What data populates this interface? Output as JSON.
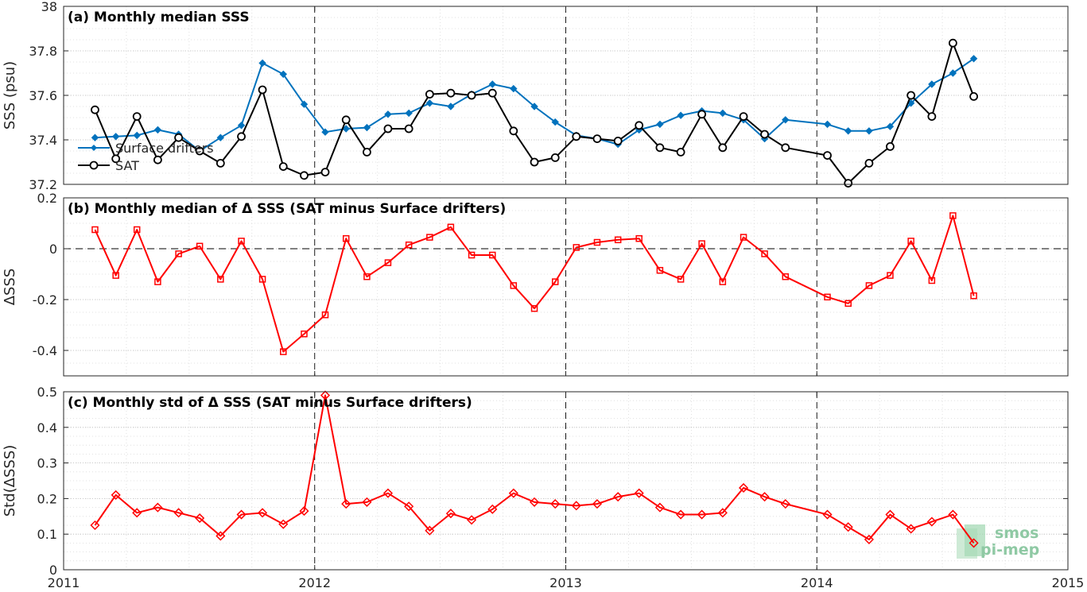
{
  "chart_data": [
    {
      "type": "line",
      "title": "(a) Monthly median SSS",
      "ylabel": "SSS (psu)",
      "xlim": [
        2011,
        2015
      ],
      "ylim": [
        37.2,
        38
      ],
      "yticks": [
        37.2,
        37.4,
        37.6,
        37.8,
        38
      ],
      "ytick_labels": [
        "37.2",
        "37.4",
        "37.6",
        "37.8",
        "38"
      ],
      "grid": true,
      "legend": "left",
      "series": [
        {
          "name": "Surface drifters",
          "color": "#0072BD",
          "marker": "diamond-filled",
          "points": [
            [
              2011.125,
              37.41
            ],
            [
              2011.208,
              37.415
            ],
            [
              2011.292,
              37.42
            ],
            [
              2011.375,
              37.445
            ],
            [
              2011.458,
              37.425
            ],
            [
              2011.542,
              37.35
            ],
            [
              2011.625,
              37.41
            ],
            [
              2011.708,
              37.465
            ],
            [
              2011.792,
              37.745
            ],
            [
              2011.875,
              37.695
            ],
            [
              2011.958,
              37.56
            ],
            [
              2012.042,
              37.435
            ],
            [
              2012.125,
              37.45
            ],
            [
              2012.208,
              37.455
            ],
            [
              2012.292,
              37.515
            ],
            [
              2012.375,
              37.52
            ],
            [
              2012.458,
              37.565
            ],
            [
              2012.542,
              37.55
            ],
            [
              2012.625,
              37.605
            ],
            [
              2012.708,
              37.65
            ],
            [
              2012.792,
              37.63
            ],
            [
              2012.875,
              37.55
            ],
            [
              2012.958,
              37.48
            ],
            [
              2013.042,
              37.42
            ],
            [
              2013.125,
              37.405
            ],
            [
              2013.208,
              37.38
            ],
            [
              2013.292,
              37.445
            ],
            [
              2013.375,
              37.47
            ],
            [
              2013.458,
              37.51
            ],
            [
              2013.542,
              37.53
            ],
            [
              2013.625,
              37.52
            ],
            [
              2013.708,
              37.49
            ],
            [
              2013.792,
              37.405
            ],
            [
              2013.875,
              37.49
            ],
            [
              2014.042,
              37.47
            ],
            [
              2014.125,
              37.44
            ],
            [
              2014.208,
              37.44
            ],
            [
              2014.292,
              37.46
            ],
            [
              2014.375,
              37.565
            ],
            [
              2014.458,
              37.65
            ],
            [
              2014.542,
              37.7
            ],
            [
              2014.625,
              37.765
            ]
          ]
        },
        {
          "name": "SAT",
          "color": "#000000",
          "marker": "circle-open",
          "points": [
            [
              2011.125,
              37.535
            ],
            [
              2011.208,
              37.315
            ],
            [
              2011.292,
              37.505
            ],
            [
              2011.375,
              37.31
            ],
            [
              2011.458,
              37.41
            ],
            [
              2011.542,
              37.35
            ],
            [
              2011.625,
              37.295
            ],
            [
              2011.708,
              37.415
            ],
            [
              2011.792,
              37.625
            ],
            [
              2011.875,
              37.28
            ],
            [
              2011.958,
              37.24
            ],
            [
              2012.042,
              37.255
            ],
            [
              2012.125,
              37.49
            ],
            [
              2012.208,
              37.345
            ],
            [
              2012.292,
              37.45
            ],
            [
              2012.375,
              37.45
            ],
            [
              2012.458,
              37.605
            ],
            [
              2012.542,
              37.61
            ],
            [
              2012.625,
              37.6
            ],
            [
              2012.708,
              37.61
            ],
            [
              2012.792,
              37.44
            ],
            [
              2012.875,
              37.3
            ],
            [
              2012.958,
              37.32
            ],
            [
              2013.042,
              37.415
            ],
            [
              2013.125,
              37.405
            ],
            [
              2013.208,
              37.395
            ],
            [
              2013.292,
              37.465
            ],
            [
              2013.375,
              37.365
            ],
            [
              2013.458,
              37.345
            ],
            [
              2013.542,
              37.515
            ],
            [
              2013.625,
              37.365
            ],
            [
              2013.708,
              37.505
            ],
            [
              2013.792,
              37.425
            ],
            [
              2013.875,
              37.365
            ],
            [
              2014.042,
              37.33
            ],
            [
              2014.125,
              37.205
            ],
            [
              2014.208,
              37.295
            ],
            [
              2014.292,
              37.37
            ],
            [
              2014.375,
              37.6
            ],
            [
              2014.458,
              37.505
            ],
            [
              2014.542,
              37.835
            ],
            [
              2014.625,
              37.595
            ]
          ]
        }
      ]
    },
    {
      "type": "line",
      "title": "(b) Monthly median of Δ SSS (SAT minus Surface drifters)",
      "ylabel": "ΔSSS",
      "xlim": [
        2011,
        2015
      ],
      "ylim": [
        -0.5,
        0.2
      ],
      "yticks": [
        -0.4,
        -0.2,
        0,
        0.2
      ],
      "ytick_labels": [
        "-0.4",
        "-0.2",
        "0",
        "0.2"
      ],
      "zero_line": true,
      "grid": true,
      "series": [
        {
          "color": "#ff0000",
          "marker": "square-open",
          "points": [
            [
              2011.125,
              0.075
            ],
            [
              2011.208,
              -0.105
            ],
            [
              2011.292,
              0.075
            ],
            [
              2011.375,
              -0.13
            ],
            [
              2011.458,
              -0.02
            ],
            [
              2011.542,
              0.01
            ],
            [
              2011.625,
              -0.12
            ],
            [
              2011.708,
              0.03
            ],
            [
              2011.792,
              -0.12
            ],
            [
              2011.875,
              -0.405
            ],
            [
              2011.958,
              -0.335
            ],
            [
              2012.042,
              -0.26
            ],
            [
              2012.125,
              0.04
            ],
            [
              2012.208,
              -0.11
            ],
            [
              2012.292,
              -0.055
            ],
            [
              2012.375,
              0.015
            ],
            [
              2012.458,
              0.045
            ],
            [
              2012.542,
              0.085
            ],
            [
              2012.625,
              -0.025
            ],
            [
              2012.708,
              -0.025
            ],
            [
              2012.792,
              -0.145
            ],
            [
              2012.875,
              -0.235
            ],
            [
              2012.958,
              -0.13
            ],
            [
              2013.042,
              0.005
            ],
            [
              2013.125,
              0.025
            ],
            [
              2013.208,
              0.035
            ],
            [
              2013.292,
              0.04
            ],
            [
              2013.375,
              -0.085
            ],
            [
              2013.458,
              -0.12
            ],
            [
              2013.542,
              0.02
            ],
            [
              2013.625,
              -0.13
            ],
            [
              2013.708,
              0.045
            ],
            [
              2013.792,
              -0.02
            ],
            [
              2013.875,
              -0.11
            ],
            [
              2014.042,
              -0.19
            ],
            [
              2014.125,
              -0.215
            ],
            [
              2014.208,
              -0.145
            ],
            [
              2014.292,
              -0.105
            ],
            [
              2014.375,
              0.03
            ],
            [
              2014.458,
              -0.125
            ],
            [
              2014.542,
              0.13
            ],
            [
              2014.625,
              -0.185
            ]
          ]
        }
      ]
    },
    {
      "type": "line",
      "title": "(c) Monthly std of Δ SSS (SAT minus Surface drifters)",
      "ylabel": "Std(ΔSSS)",
      "xlim": [
        2011,
        2015
      ],
      "ylim": [
        0,
        0.5
      ],
      "yticks": [
        0,
        0.1,
        0.2,
        0.3,
        0.4,
        0.5
      ],
      "ytick_labels": [
        "0",
        "0.1",
        "0.2",
        "0.3",
        "0.4",
        "0.5"
      ],
      "xticks": [
        2011,
        2012,
        2013,
        2014,
        2015
      ],
      "xtick_labels": [
        "2011",
        "2012",
        "2013",
        "2014",
        "2015"
      ],
      "grid": true,
      "series": [
        {
          "color": "#ff0000",
          "marker": "diamond-open",
          "points": [
            [
              2011.125,
              0.125
            ],
            [
              2011.208,
              0.21
            ],
            [
              2011.292,
              0.16
            ],
            [
              2011.375,
              0.175
            ],
            [
              2011.458,
              0.16
            ],
            [
              2011.542,
              0.145
            ],
            [
              2011.625,
              0.095
            ],
            [
              2011.708,
              0.155
            ],
            [
              2011.792,
              0.16
            ],
            [
              2011.875,
              0.128
            ],
            [
              2011.958,
              0.165
            ],
            [
              2012.042,
              0.49
            ],
            [
              2012.125,
              0.185
            ],
            [
              2012.208,
              0.19
            ],
            [
              2012.292,
              0.215
            ],
            [
              2012.375,
              0.178
            ],
            [
              2012.458,
              0.11
            ],
            [
              2012.542,
              0.158
            ],
            [
              2012.625,
              0.14
            ],
            [
              2012.708,
              0.17
            ],
            [
              2012.792,
              0.215
            ],
            [
              2012.875,
              0.19
            ],
            [
              2012.958,
              0.185
            ],
            [
              2013.042,
              0.18
            ],
            [
              2013.125,
              0.185
            ],
            [
              2013.208,
              0.205
            ],
            [
              2013.292,
              0.215
            ],
            [
              2013.375,
              0.175
            ],
            [
              2013.458,
              0.155
            ],
            [
              2013.542,
              0.155
            ],
            [
              2013.625,
              0.16
            ],
            [
              2013.708,
              0.23
            ],
            [
              2013.792,
              0.205
            ],
            [
              2013.875,
              0.185
            ],
            [
              2014.042,
              0.155
            ],
            [
              2014.125,
              0.12
            ],
            [
              2014.208,
              0.085
            ],
            [
              2014.292,
              0.155
            ],
            [
              2014.375,
              0.115
            ],
            [
              2014.458,
              0.135
            ],
            [
              2014.542,
              0.155
            ],
            [
              2014.625,
              0.075
            ]
          ]
        }
      ]
    }
  ],
  "logo": {
    "line1": "smos",
    "line2": "pi-mep"
  }
}
